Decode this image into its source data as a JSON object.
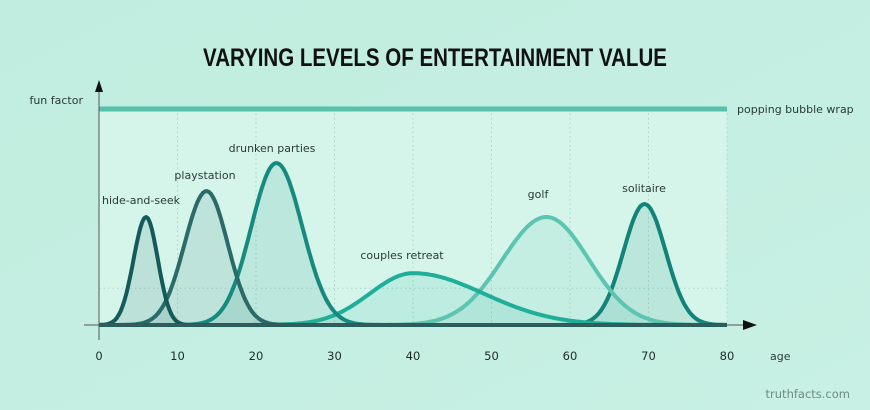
{
  "chart_data": {
    "type": "line",
    "title": "VARYING LEVELS OF ENTERTAINMENT VALUE",
    "xlabel": "age",
    "ylabel": "fun factor",
    "xlim": [
      0,
      80
    ],
    "ylim": [
      0,
      100
    ],
    "xticks": [
      "0",
      "10",
      "20",
      "30",
      "40",
      "50",
      "60",
      "70",
      "80"
    ],
    "grid": "dotted vertical every 10 years, one dotted horizontal line",
    "grid_y": 17,
    "series": [
      {
        "name": "hide-and-seek",
        "peak": 50,
        "center": 6,
        "spread_left": 1.6,
        "spread_right": 1.5,
        "color": "#155a5a"
      },
      {
        "name": "playstation",
        "peak": 62,
        "center": 13.7,
        "spread_left": 2.8,
        "spread_right": 2.7,
        "color": "#2a6a69"
      },
      {
        "name": "drunken parties",
        "peak": 75,
        "center": 22.6,
        "spread_left": 3.2,
        "spread_right": 3.3,
        "color": "#178a7f"
      },
      {
        "name": "couples retreat",
        "peak": 24,
        "center": 40,
        "spread_left": 5.5,
        "spread_right": 9,
        "color": "#1fae98"
      },
      {
        "name": "golf",
        "peak": 50,
        "center": 57,
        "spread_left": 5.6,
        "spread_right": 5.4,
        "color": "#5cc4b1"
      },
      {
        "name": "solitaire",
        "peak": 56,
        "center": 69.5,
        "spread_left": 2.7,
        "spread_right": 2.7,
        "color": "#128379"
      },
      {
        "name": "popping bubble wrap",
        "constant": 100,
        "color": "#57c1ad"
      }
    ]
  },
  "credit": "truthfacts.com"
}
